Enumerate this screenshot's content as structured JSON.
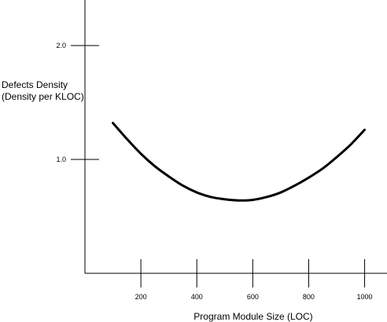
{
  "chart_data": {
    "type": "line",
    "title": "",
    "xlabel": "Program Module Size (LOC)",
    "ylabel": [
      "Defects Density",
      "(Density per KLOC)"
    ],
    "xticks": [
      200,
      400,
      600,
      800,
      1000
    ],
    "xtick_labels": [
      "200",
      "400",
      "600",
      "800",
      "1000"
    ],
    "yticks": [
      1.0,
      2.0
    ],
    "ytick_labels": [
      "1.0",
      "2.0"
    ],
    "xlim": [
      0,
      1080
    ],
    "ylim": [
      0,
      2.4
    ],
    "grid": false,
    "legend": "none",
    "line_color": "#000000",
    "series": [
      {
        "x": [
          100,
          150,
          200,
          250,
          300,
          350,
          400,
          450,
          500,
          550,
          600,
          650,
          700,
          750,
          800,
          850,
          900,
          950,
          1000
        ],
        "y": [
          1.32,
          1.18,
          1.05,
          0.94,
          0.85,
          0.77,
          0.71,
          0.67,
          0.65,
          0.64,
          0.645,
          0.67,
          0.71,
          0.77,
          0.84,
          0.92,
          1.02,
          1.13,
          1.26
        ]
      }
    ]
  }
}
